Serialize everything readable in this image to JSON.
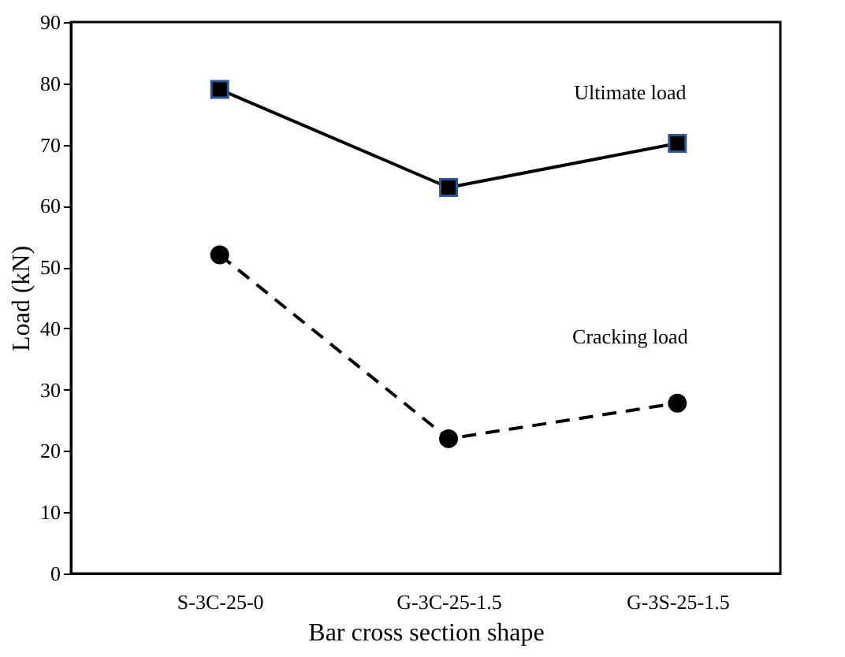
{
  "chart_data": {
    "type": "line",
    "xlabel": "Bar cross section shape",
    "ylabel": "Load (kN)",
    "categories": [
      "S-3C-25-0",
      "G-3C-25-1.5",
      "G-3S-25-1.5"
    ],
    "series": [
      {
        "name": "Ultimate load",
        "color": "#000000",
        "values": [
          79,
          63,
          70.2
        ],
        "marker": "square",
        "line_style": "solid"
      },
      {
        "name": "Cracking load",
        "color": "#000000",
        "values": [
          52,
          22,
          27.8
        ],
        "marker": "circle",
        "line_style": "dashed"
      }
    ],
    "ylim": [
      0,
      90
    ],
    "yticks": [
      0,
      10,
      20,
      30,
      40,
      50,
      60,
      70,
      80,
      90
    ],
    "grid": false,
    "legend": false
  }
}
